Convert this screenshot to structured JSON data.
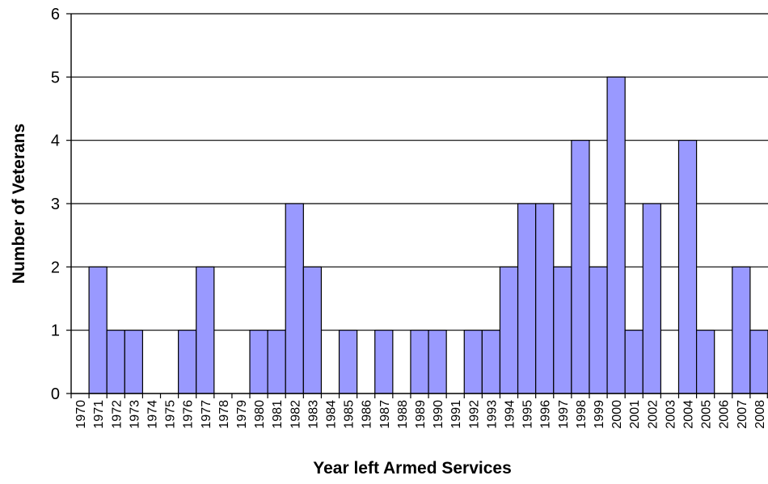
{
  "colors": {
    "bar_fill": "#9999ff",
    "bar_stroke": "#000000",
    "gridline": "#000000",
    "axis": "#000000",
    "background": "#ffffff"
  },
  "chart_data": {
    "type": "bar",
    "title": "",
    "xlabel": "Year left Armed Services",
    "ylabel": "Number of Veterans",
    "ylim": [
      0,
      6
    ],
    "yticks": [
      "0",
      "1",
      "2",
      "3",
      "4",
      "5",
      "6"
    ],
    "grid": true,
    "legend": "none",
    "categories": [
      "1970",
      "1971",
      "1972",
      "1973",
      "1974",
      "1975",
      "1976",
      "1977",
      "1978",
      "1979",
      "1980",
      "1981",
      "1982",
      "1983",
      "1984",
      "1985",
      "1986",
      "1987",
      "1988",
      "1989",
      "1990",
      "1991",
      "1992",
      "1993",
      "1994",
      "1995",
      "1996",
      "1997",
      "1998",
      "1999",
      "2000",
      "2001",
      "2002",
      "2003",
      "2004",
      "2005",
      "2006",
      "2007",
      "2008"
    ],
    "values": [
      0,
      2,
      1,
      1,
      0,
      0,
      1,
      2,
      0,
      0,
      1,
      1,
      3,
      2,
      0,
      1,
      0,
      1,
      0,
      1,
      1,
      0,
      1,
      1,
      2,
      3,
      3,
      2,
      4,
      2,
      5,
      1,
      3,
      0,
      4,
      1,
      0,
      2,
      1
    ]
  }
}
